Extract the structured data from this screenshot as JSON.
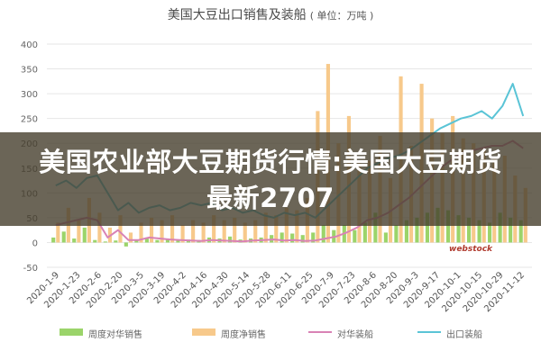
{
  "title": "美国大豆出口销售及装船",
  "unit_label": "( 单位：万吨 )",
  "overlay_text": "美国农业部大豆期货行情:美国大豆期货最新2707",
  "watermark": "webstock",
  "colors": {
    "weekly_sales": "#9bd46a",
    "net_sales": "#f7c98b",
    "china_shipments": "#d982b5",
    "exports_shipments": "#5ac4d6",
    "grid": "#e6e6e6",
    "banner": "#463e2d"
  },
  "chart_data": {
    "type": "bar",
    "title": "美国大豆出口销售及装船",
    "ylim": [
      -50,
      400
    ],
    "yticks": [
      400,
      350,
      300,
      250,
      200,
      150,
      100,
      50,
      0,
      -50
    ],
    "grid": true,
    "legend_position": "bottom",
    "x_tick_labels": [
      "2020-1-9",
      "2020-1-23",
      "2020-2-6",
      "2020-2-20",
      "2020-3-5",
      "2020-3-19",
      "2020-4-2",
      "2020-4-16",
      "2020-4-30",
      "2020-5-14",
      "2020-5-28",
      "2020-6-11",
      "2020-6-25",
      "2020-7-9",
      "2020-7-23",
      "2020-8-6",
      "2020-8-20",
      "2020-9-3",
      "2020-9-17",
      "2020-10-1",
      "2020-10-15",
      "2020-10-29",
      "2020-11-12"
    ],
    "series": [
      {
        "name": "周度对华销售",
        "kind": "bar",
        "values": [
          10,
          22,
          8,
          30,
          5,
          2,
          4,
          -8,
          6,
          10,
          5,
          8,
          4,
          6,
          5,
          10,
          8,
          12,
          6,
          8,
          10,
          15,
          20,
          18,
          15,
          20,
          35,
          25,
          35,
          25,
          40,
          60,
          20,
          35,
          45,
          50,
          60,
          70,
          65,
          55,
          50,
          45,
          40,
          60,
          50,
          45
        ]
      },
      {
        "name": "周度净销售",
        "kind": "bar",
        "values": [
          40,
          70,
          45,
          90,
          60,
          30,
          55,
          20,
          40,
          50,
          45,
          55,
          35,
          45,
          40,
          55,
          45,
          50,
          40,
          45,
          60,
          55,
          70,
          65,
          90,
          265,
          360,
          200,
          255,
          160,
          165,
          215,
          130,
          335,
          195,
          320,
          250,
          220,
          255,
          210,
          200,
          190,
          170,
          175,
          135,
          110
        ]
      },
      {
        "name": "对华装船",
        "kind": "line",
        "values": [
          35,
          40,
          45,
          50,
          45,
          10,
          25,
          5,
          5,
          10,
          8,
          6,
          5,
          4,
          3,
          5,
          4,
          3,
          2,
          4,
          5,
          6,
          4,
          5,
          3,
          4,
          8,
          12,
          20,
          30,
          45,
          50,
          60,
          75,
          90,
          110,
          130,
          150,
          165,
          180,
          185,
          190,
          195,
          195,
          205,
          190
        ]
      },
      {
        "name": "出口装船",
        "kind": "line",
        "values": [
          115,
          125,
          110,
          130,
          135,
          100,
          65,
          80,
          60,
          70,
          75,
          65,
          70,
          80,
          75,
          80,
          65,
          70,
          60,
          65,
          55,
          50,
          60,
          55,
          60,
          50,
          70,
          90,
          110,
          130,
          150,
          160,
          170,
          175,
          185,
          200,
          215,
          230,
          240,
          250,
          255,
          265,
          250,
          275,
          320,
          255
        ]
      }
    ]
  }
}
